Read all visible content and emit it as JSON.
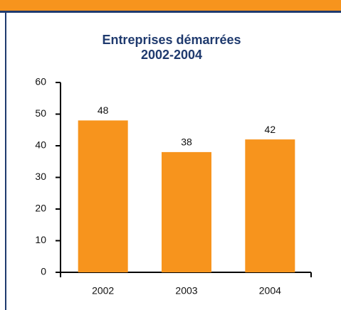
{
  "chart_data": {
    "type": "bar",
    "title": [
      "Entreprises démarrées",
      "2002-2004"
    ],
    "categories": [
      "2002",
      "2003",
      "2004"
    ],
    "values": [
      48,
      38,
      42
    ],
    "color": "#f7941d",
    "ylim": [
      0,
      60
    ],
    "yticks": [
      0,
      10,
      20,
      30,
      40,
      50,
      60
    ],
    "grid": false
  }
}
